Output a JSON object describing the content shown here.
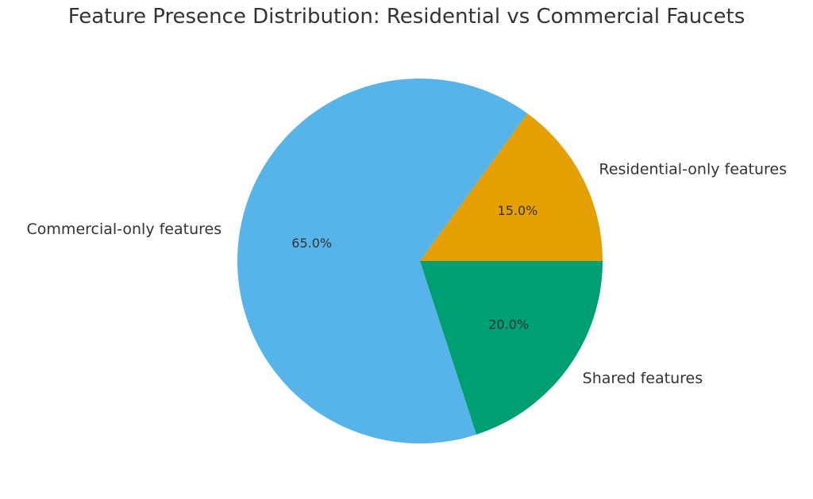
{
  "chart_data": {
    "type": "pie",
    "title": "Feature Presence Distribution: Residential vs Commercial Faucets",
    "start_angle_deg": 0,
    "direction": "counterclockwise",
    "slices": [
      {
        "label": "Residential-only features",
        "value": 15.0,
        "pct_label": "15.0%",
        "color": "#E69F00"
      },
      {
        "label": "Commercial-only features",
        "value": 65.0,
        "pct_label": "65.0%",
        "color": "#56B4E9"
      },
      {
        "label": "Shared features",
        "value": 20.0,
        "pct_label": "20.0%",
        "color": "#009E73"
      }
    ]
  }
}
